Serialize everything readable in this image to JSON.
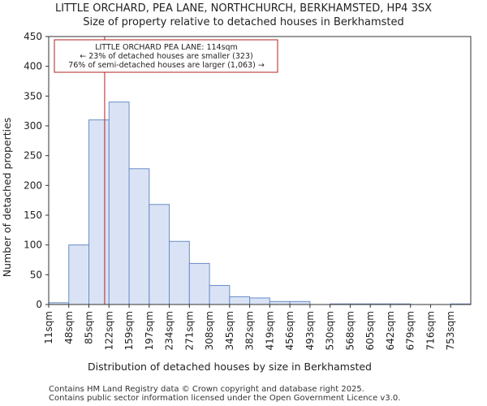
{
  "chart_data": {
    "type": "bar",
    "title": "LITTLE ORCHARD, PEA LANE, NORTHCHURCH, BERKHAMSTED, HP4 3SX",
    "subtitle": "Size of property relative to detached houses in Berkhamsted",
    "xlabel": "Distribution of detached houses by size in Berkhamsted",
    "ylabel": "Number of detached properties",
    "categories": [
      "11sqm",
      "48sqm",
      "85sqm",
      "122sqm",
      "159sqm",
      "197sqm",
      "234sqm",
      "271sqm",
      "308sqm",
      "345sqm",
      "382sqm",
      "419sqm",
      "456sqm",
      "493sqm",
      "530sqm",
      "568sqm",
      "605sqm",
      "642sqm",
      "679sqm",
      "716sqm",
      "753sqm"
    ],
    "values": [
      3,
      100,
      310,
      340,
      228,
      168,
      106,
      69,
      32,
      13,
      11,
      5,
      5,
      0,
      1,
      1,
      1,
      1,
      0,
      0,
      1
    ],
    "ylim": [
      0,
      450
    ],
    "yticks": [
      0,
      50,
      100,
      150,
      200,
      250,
      300,
      350,
      400,
      450
    ],
    "bar_color": "#dae3f5",
    "bar_edge_color": "#6a8cc7",
    "marker": {
      "value_sqm": 114,
      "color": "#b22222",
      "lines": [
        "LITTLE ORCHARD PEA LANE: 114sqm",
        "← 23% of detached houses are smaller (323)",
        "76% of semi-detached houses are larger (1,063) →"
      ]
    }
  },
  "footer": {
    "line1": "Contains HM Land Registry data © Crown copyright and database right 2025.",
    "line2": "Contains public sector information licensed under the Open Government Licence v3.0."
  }
}
